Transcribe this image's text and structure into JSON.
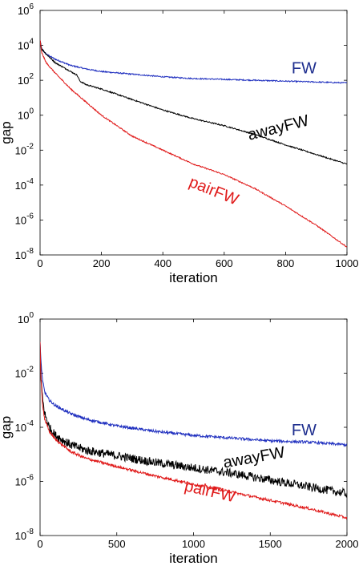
{
  "chart_data": [
    {
      "type": "line",
      "xlabel": "iteration",
      "ylabel": "gap",
      "xlim": [
        0,
        1000
      ],
      "ylim_log10": [
        -8,
        6
      ],
      "yscale": "log",
      "grid": false,
      "xticks": [
        "0",
        "200",
        "400",
        "600",
        "800",
        "1000"
      ],
      "yticks": [
        {
          "base": "10",
          "exp": "-8"
        },
        {
          "base": "10",
          "exp": "-6"
        },
        {
          "base": "10",
          "exp": "-4"
        },
        {
          "base": "10",
          "exp": "-2"
        },
        {
          "base": "10",
          "exp": "0"
        },
        {
          "base": "10",
          "exp": "2"
        },
        {
          "base": "10",
          "exp": "4"
        },
        {
          "base": "10",
          "exp": "6"
        }
      ],
      "series": [
        {
          "name": "FW",
          "color": "#1f2fbf",
          "x": [
            0,
            5,
            20,
            50,
            100,
            150,
            200,
            300,
            400,
            500,
            600,
            700,
            800,
            900,
            1000
          ],
          "log10_y": [
            4.3,
            3.8,
            3.5,
            3.2,
            2.85,
            2.65,
            2.5,
            2.35,
            2.2,
            2.1,
            2.05,
            2.0,
            1.95,
            1.9,
            1.85
          ]
        },
        {
          "name": "awayFW",
          "color": "#000000",
          "x": [
            0,
            5,
            20,
            50,
            100,
            120,
            130,
            150,
            200,
            300,
            400,
            500,
            600,
            700,
            800,
            900,
            1000
          ],
          "log10_y": [
            4.3,
            3.8,
            3.5,
            3.0,
            2.5,
            2.3,
            1.95,
            1.75,
            1.5,
            0.9,
            0.3,
            -0.2,
            -0.6,
            -1.1,
            -1.7,
            -2.25,
            -2.8
          ]
        },
        {
          "name": "pairFW",
          "color": "#e01a1a",
          "x": [
            0,
            5,
            20,
            50,
            100,
            150,
            200,
            300,
            400,
            500,
            600,
            700,
            800,
            900,
            1000
          ],
          "log10_y": [
            4.3,
            3.6,
            3.0,
            2.4,
            1.5,
            0.75,
            0.0,
            -1.2,
            -2.0,
            -2.8,
            -3.4,
            -4.2,
            -5.2,
            -6.3,
            -7.55
          ]
        }
      ],
      "annotations": [
        {
          "text": "FW",
          "color": "#1f2f8f",
          "x": 860,
          "log10_y": 2.4,
          "angle": 0
        },
        {
          "text": "awayFW",
          "color": "#000000",
          "x": 780,
          "log10_y": -1.0,
          "angle": -14
        },
        {
          "text": "pairFW",
          "color": "#e01a1a",
          "x": 560,
          "log10_y": -4.6,
          "angle": 22
        }
      ]
    },
    {
      "type": "line",
      "xlabel": "iteration",
      "ylabel": "gap",
      "xlim": [
        0,
        2000
      ],
      "ylim_log10": [
        -8,
        0
      ],
      "yscale": "log",
      "grid": false,
      "xticks": [
        "0",
        "500",
        "1000",
        "1500",
        "2000"
      ],
      "yticks": [
        {
          "base": "10",
          "exp": "-8"
        },
        {
          "base": "10",
          "exp": "-6"
        },
        {
          "base": "10",
          "exp": "-4"
        },
        {
          "base": "10",
          "exp": "-2"
        },
        {
          "base": "10",
          "exp": "0"
        }
      ],
      "series": [
        {
          "name": "FW",
          "color": "#1f2fbf",
          "x": [
            0,
            5,
            15,
            30,
            60,
            100,
            200,
            300,
            500,
            750,
            1000,
            1250,
            1500,
            1750,
            2000
          ],
          "log10_y": [
            -0.85,
            -1.5,
            -2.2,
            -2.7,
            -3.0,
            -3.2,
            -3.5,
            -3.7,
            -3.95,
            -4.15,
            -4.3,
            -4.4,
            -4.5,
            -4.55,
            -4.65
          ]
        },
        {
          "name": "awayFW",
          "color": "#000000",
          "x": [
            0,
            5,
            15,
            30,
            60,
            100,
            200,
            300,
            500,
            750,
            1000,
            1250,
            1500,
            1750,
            2000
          ],
          "log10_y": [
            -0.85,
            -2.0,
            -2.9,
            -3.5,
            -4.0,
            -4.3,
            -4.65,
            -4.85,
            -5.05,
            -5.3,
            -5.5,
            -5.7,
            -5.95,
            -6.2,
            -6.45
          ]
        },
        {
          "name": "pairFW",
          "color": "#e01a1a",
          "x": [
            0,
            5,
            15,
            30,
            60,
            100,
            200,
            300,
            500,
            750,
            1000,
            1250,
            1500,
            1750,
            2000
          ],
          "log10_y": [
            -0.85,
            -2.1,
            -3.1,
            -3.7,
            -4.15,
            -4.45,
            -4.9,
            -5.15,
            -5.45,
            -5.8,
            -6.1,
            -6.4,
            -6.7,
            -7.0,
            -7.35
          ]
        }
      ],
      "annotations": [
        {
          "text": "FW",
          "color": "#1f2f8f",
          "x": 1720,
          "log10_y": -4.3,
          "angle": 0
        },
        {
          "text": "awayFW",
          "color": "#000000",
          "x": 1400,
          "log10_y": -5.3,
          "angle": -10
        },
        {
          "text": "pairFW",
          "color": "#e01a1a",
          "x": 1100,
          "log10_y": -6.55,
          "angle": 13
        }
      ]
    }
  ]
}
